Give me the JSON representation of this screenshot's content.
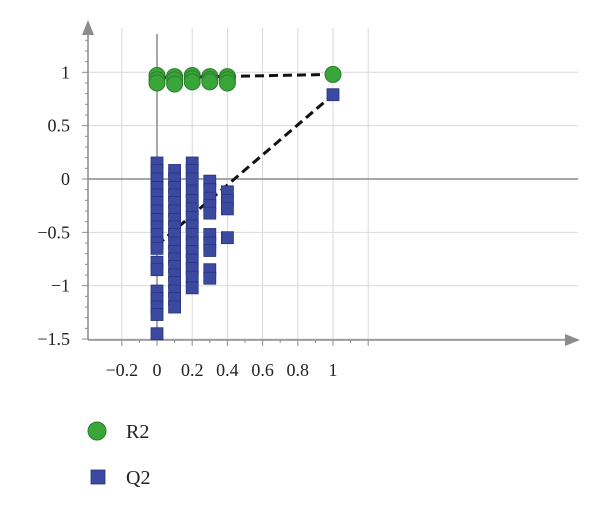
{
  "colors": {
    "r2_fill": "#3aa63a",
    "r2_stroke": "#2b7d2b",
    "q2_fill": "#3b4aa0",
    "q2_stroke": "#27337a",
    "regression_line": "#111111",
    "grid": "#d9d9d9",
    "axis": "#8c8c8c"
  },
  "chart_data": {
    "type": "scatter",
    "title": "",
    "xlabel": "",
    "ylabel": "",
    "xlim": [
      -0.2,
      1.2
    ],
    "ylim": [
      -1.5,
      1.45
    ],
    "x_ticks": [
      -0.2,
      0,
      0.2,
      0.4,
      0.6,
      0.8,
      1
    ],
    "x_tick_labels": [
      "−0.2",
      "0",
      "0.2",
      "0.4",
      "0.6",
      "0.8",
      "1"
    ],
    "y_ticks": [
      -1.5,
      -1,
      -0.5,
      0,
      0.5,
      1
    ],
    "y_tick_labels": [
      "−1.5",
      "−1",
      "−0.5",
      "0",
      "0.5",
      "1"
    ],
    "grid": true,
    "legend_position": "bottom-left",
    "series": [
      {
        "name": "R2",
        "marker": "circle",
        "points": [
          [
            0,
            0.97
          ],
          [
            0,
            0.93
          ],
          [
            0,
            0.9
          ],
          [
            0.1,
            0.96
          ],
          [
            0.1,
            0.93
          ],
          [
            0.1,
            0.89
          ],
          [
            0.2,
            0.97
          ],
          [
            0.2,
            0.94
          ],
          [
            0.2,
            0.91
          ],
          [
            0.3,
            0.96
          ],
          [
            0.3,
            0.93
          ],
          [
            0.3,
            0.91
          ],
          [
            0.4,
            0.96
          ],
          [
            0.4,
            0.93
          ],
          [
            0.4,
            0.9
          ],
          [
            1,
            0.98
          ]
        ],
        "trend": [
          [
            0,
            0.95
          ],
          [
            1,
            0.98
          ]
        ]
      },
      {
        "name": "Q2",
        "marker": "square",
        "points": [
          [
            0,
            0.15
          ],
          [
            0,
            0.08
          ],
          [
            0,
            0.0
          ],
          [
            0,
            -0.08
          ],
          [
            0,
            -0.15
          ],
          [
            0,
            -0.22
          ],
          [
            0,
            -0.3
          ],
          [
            0,
            -0.38
          ],
          [
            0,
            -0.45
          ],
          [
            0,
            -0.52
          ],
          [
            0,
            -0.6
          ],
          [
            0,
            -0.65
          ],
          [
            0,
            -0.78
          ],
          [
            0,
            -0.85
          ],
          [
            0,
            -1.05
          ],
          [
            0,
            -1.12
          ],
          [
            0,
            -1.2
          ],
          [
            0,
            -1.27
          ],
          [
            0,
            -1.45
          ],
          [
            0.1,
            0.08
          ],
          [
            0.1,
            0.0
          ],
          [
            0.1,
            -0.08
          ],
          [
            0.1,
            -0.15
          ],
          [
            0.1,
            -0.22
          ],
          [
            0.1,
            -0.3
          ],
          [
            0.1,
            -0.38
          ],
          [
            0.1,
            -0.45
          ],
          [
            0.1,
            -0.52
          ],
          [
            0.1,
            -0.6
          ],
          [
            0.1,
            -0.68
          ],
          [
            0.1,
            -0.75
          ],
          [
            0.1,
            -0.82
          ],
          [
            0.1,
            -0.9
          ],
          [
            0.1,
            -0.97
          ],
          [
            0.1,
            -1.05
          ],
          [
            0.1,
            -1.12
          ],
          [
            0.1,
            -1.2
          ],
          [
            0.2,
            0.15
          ],
          [
            0.2,
            0.08
          ],
          [
            0.2,
            0.0
          ],
          [
            0.2,
            -0.12
          ],
          [
            0.2,
            -0.2
          ],
          [
            0.2,
            -0.28
          ],
          [
            0.2,
            -0.36
          ],
          [
            0.2,
            -0.44
          ],
          [
            0.2,
            -0.52
          ],
          [
            0.2,
            -0.6
          ],
          [
            0.2,
            -0.68
          ],
          [
            0.2,
            -0.76
          ],
          [
            0.2,
            -0.84
          ],
          [
            0.2,
            -0.92
          ],
          [
            0.2,
            -1.02
          ],
          [
            0.3,
            -0.02
          ],
          [
            0.3,
            -0.1
          ],
          [
            0.3,
            -0.18
          ],
          [
            0.3,
            -0.25
          ],
          [
            0.3,
            -0.32
          ],
          [
            0.3,
            -0.52
          ],
          [
            0.3,
            -0.6
          ],
          [
            0.3,
            -0.67
          ],
          [
            0.3,
            -0.85
          ],
          [
            0.3,
            -0.93
          ],
          [
            0.4,
            -0.12
          ],
          [
            0.4,
            -0.2
          ],
          [
            0.4,
            -0.28
          ],
          [
            0.4,
            -0.55
          ],
          [
            1,
            0.79
          ]
        ],
        "trend": [
          [
            0,
            -0.62
          ],
          [
            1,
            0.79
          ]
        ]
      }
    ]
  }
}
